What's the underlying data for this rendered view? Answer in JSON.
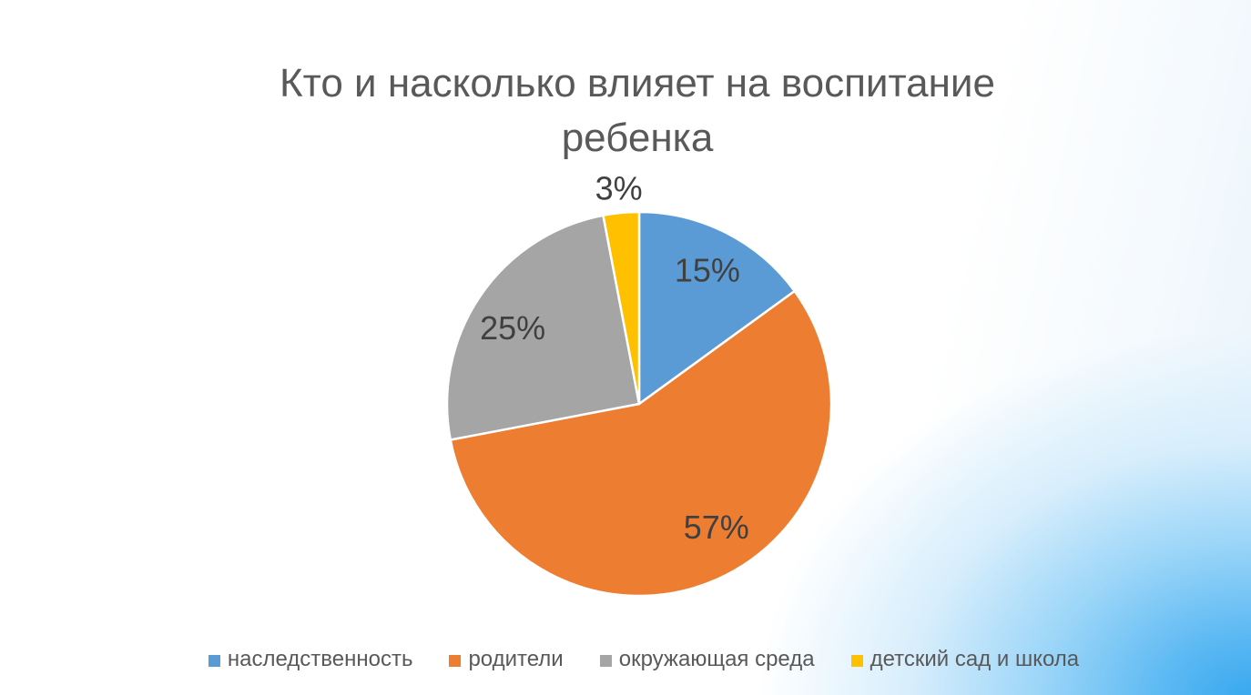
{
  "title": "Кто и насколько влияет на воспитание ребенка",
  "colors": {
    "title_text": "#595959",
    "data_label_text": "#404040",
    "legend_text": "#595959",
    "slice_separator": "#ffffff",
    "background_corner_blue": "#36a7ee",
    "background_base": "#ffffff"
  },
  "chart_data": {
    "type": "pie",
    "title": "Кто и насколько влияет на воспитание ребенка",
    "categories": [
      "наследственность",
      "родители",
      "окружающая среда",
      "детский сад и школа"
    ],
    "values": [
      15,
      57,
      25,
      3
    ],
    "unit": "percent",
    "data_labels": [
      "15%",
      "57%",
      "25%",
      "3%"
    ],
    "slice_colors": [
      "#5B9BD5",
      "#ED7D31",
      "#A5A5A5",
      "#FFC000"
    ],
    "start_angle_deg": 0,
    "direction": "clockwise",
    "legend_position": "bottom",
    "data_labels_position": "inside (3% outside at top)"
  },
  "legend": {
    "items": [
      {
        "label": "наследственность",
        "color": "#5B9BD5"
      },
      {
        "label": "родители",
        "color": "#ED7D31"
      },
      {
        "label": "окружающая среда",
        "color": "#A5A5A5"
      },
      {
        "label": "детский сад и школа",
        "color": "#FFC000"
      }
    ]
  }
}
